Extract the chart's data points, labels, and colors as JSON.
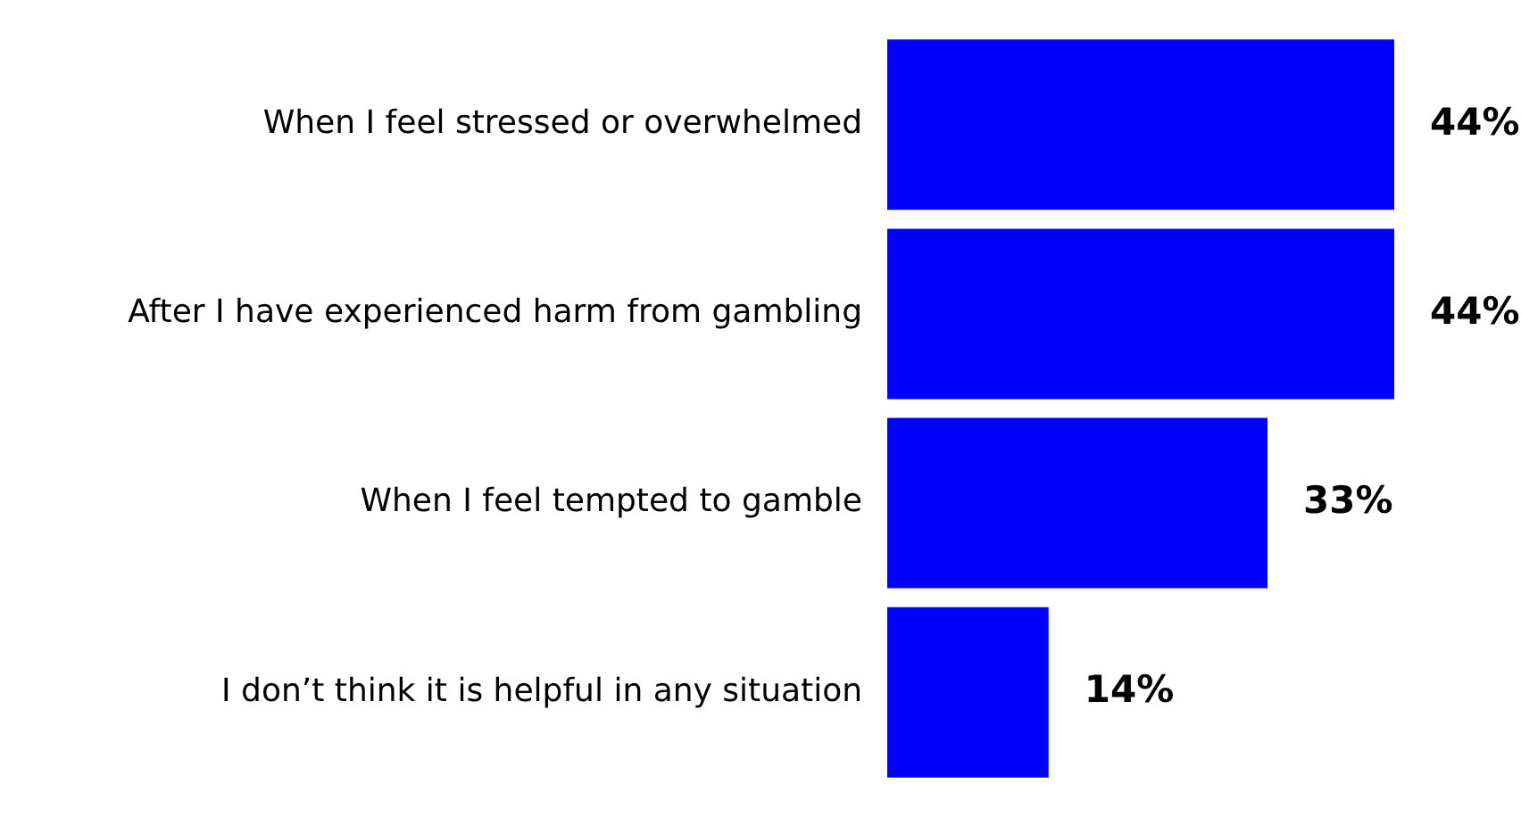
{
  "chart_data": {
    "type": "bar",
    "orientation": "horizontal",
    "categories": [
      "When I feel stressed or overwhelmed",
      "After I have experienced harm from gambling",
      "When I feel tempted to gamble",
      "I don’t think it is helpful in any situation"
    ],
    "values": [
      44,
      44,
      33,
      14
    ],
    "value_labels": [
      "44%",
      "44%",
      "33%",
      "14%"
    ],
    "color": "#0000ff",
    "legend": false,
    "tick_labels": "y"
  }
}
